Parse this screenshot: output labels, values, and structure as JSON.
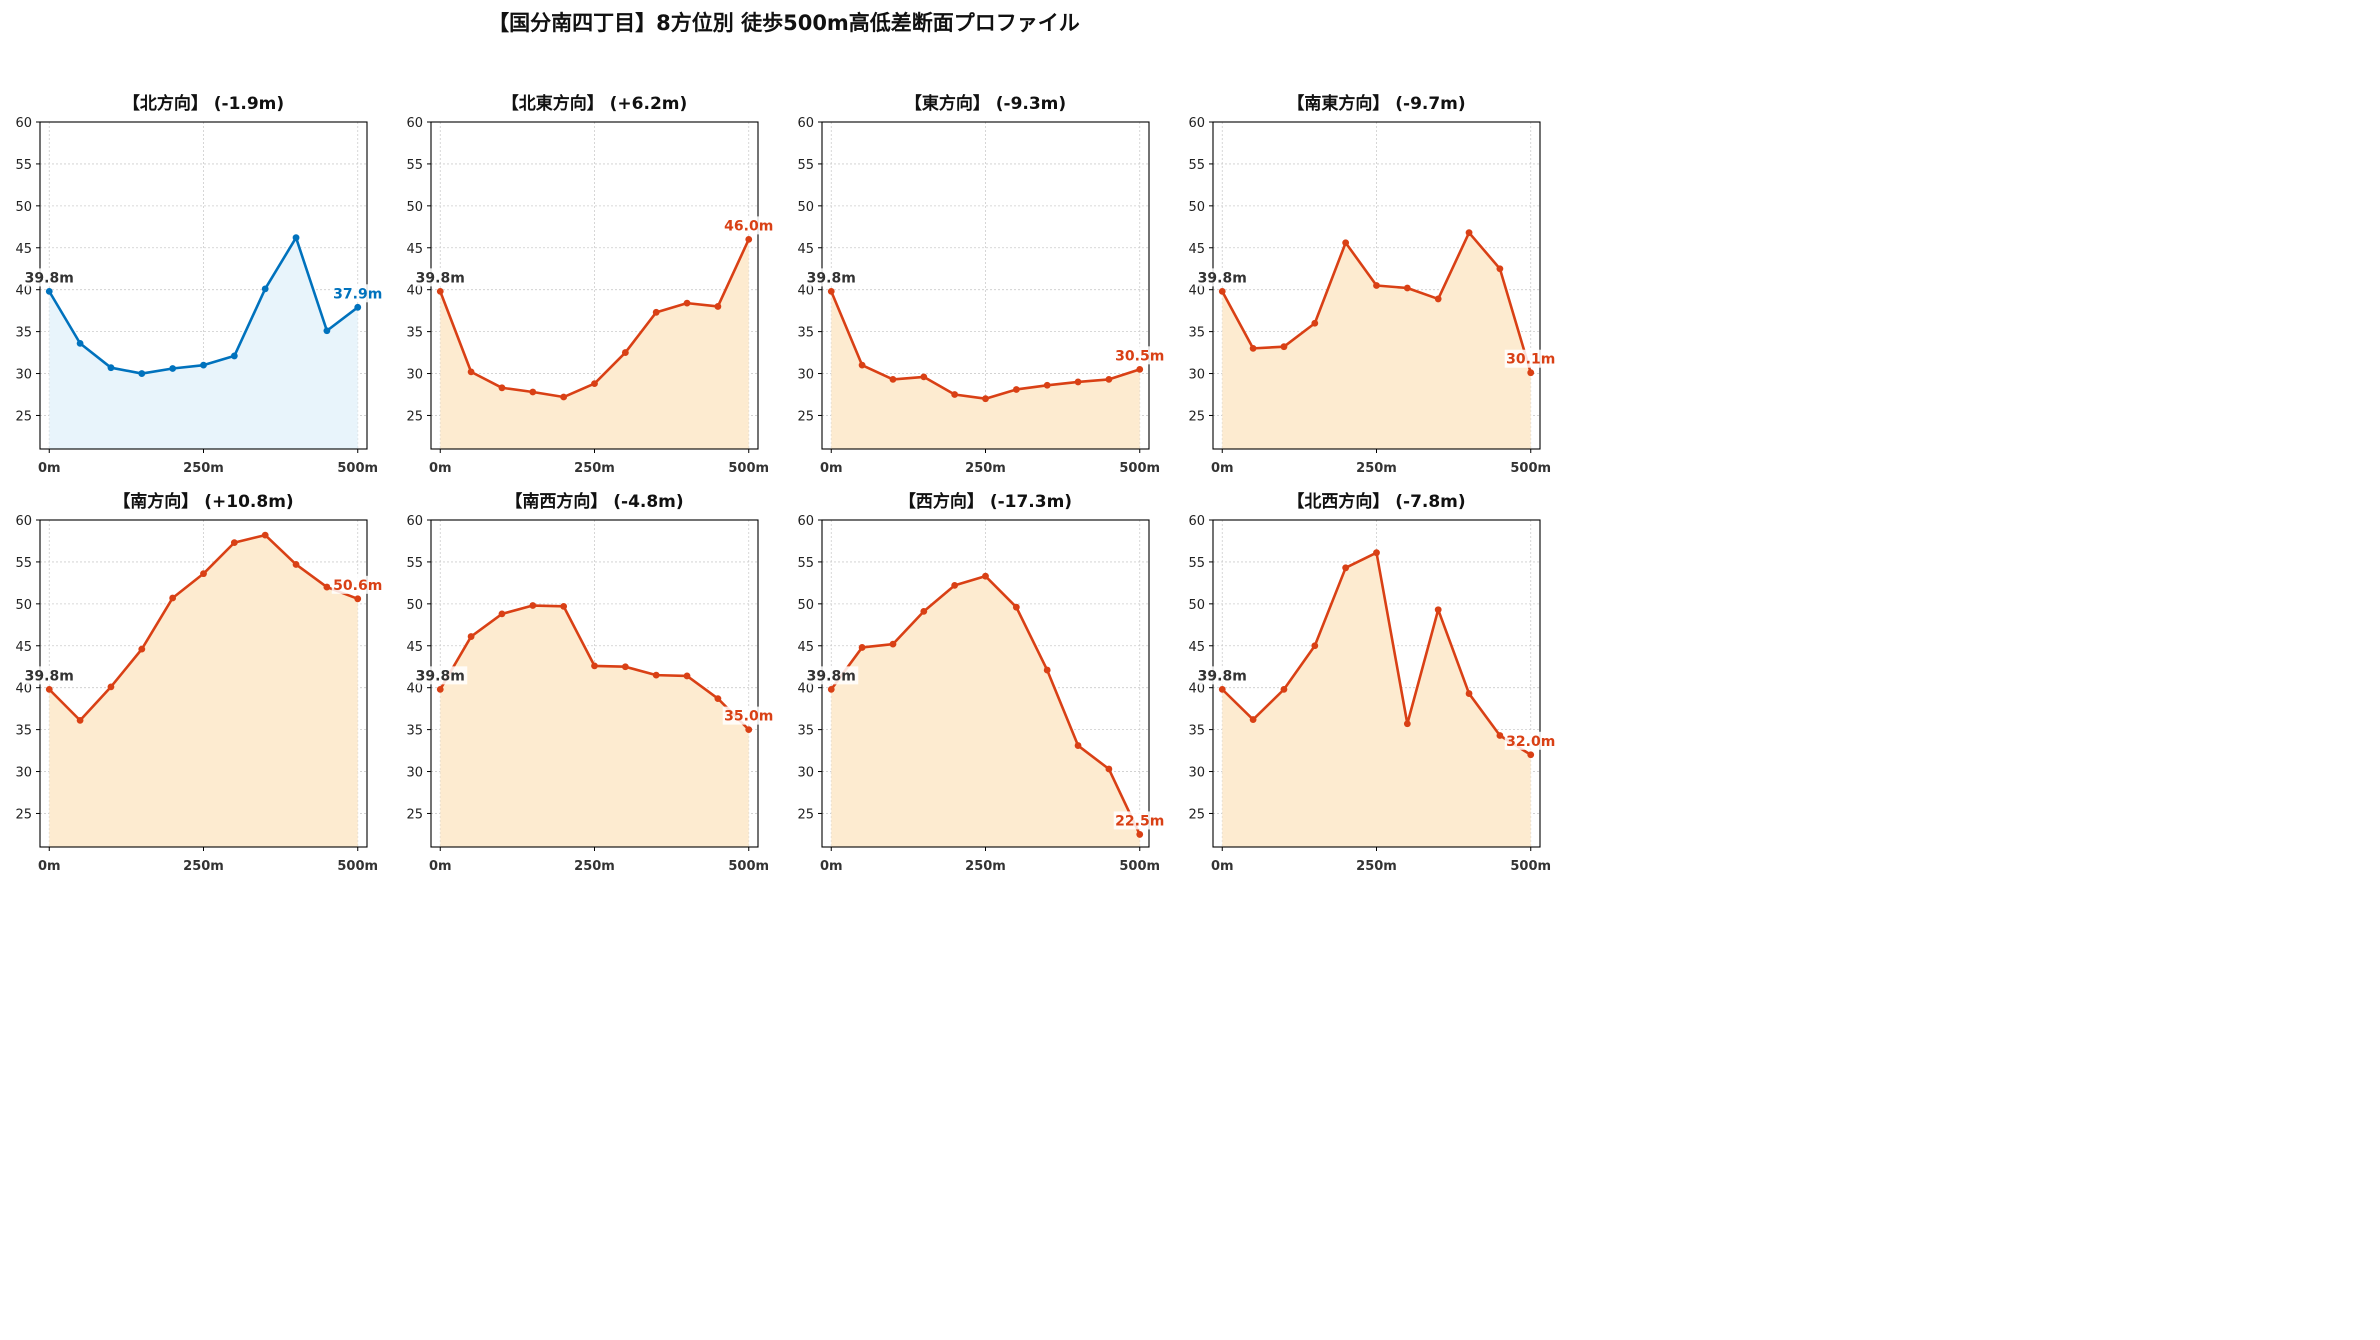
{
  "title": "【国分南四丁目】8方位別 徒歩500m高低差断面プロファイル",
  "colors": {
    "up_line": "#0072bd",
    "up_fill": "#e8f4fb",
    "down_line": "#d94015",
    "down_fill": "#fdebd0",
    "start_label": "#333333",
    "grid": "#cccccc"
  },
  "chart_data": [
    {
      "type": "area",
      "title": "【北方向】 (-1.9m)",
      "x": [
        0,
        50,
        100,
        150,
        200,
        250,
        300,
        350,
        400,
        450,
        500
      ],
      "y": [
        39.8,
        33.6,
        30.7,
        30.0,
        30.6,
        31.0,
        32.1,
        40.1,
        46.2,
        35.1,
        37.9
      ],
      "start_label": "39.8m",
      "end_label": "37.9m",
      "scheme": "up",
      "xticks": [
        "0m",
        "250m",
        "500m"
      ],
      "yticks": [
        25,
        30,
        35,
        40,
        45,
        50,
        55,
        60
      ],
      "ylim": [
        21,
        60
      ],
      "xlim": [
        -15,
        515
      ],
      "grid": true
    },
    {
      "type": "area",
      "title": "【北東方向】 (+6.2m)",
      "x": [
        0,
        50,
        100,
        150,
        200,
        250,
        300,
        350,
        400,
        450,
        500
      ],
      "y": [
        39.8,
        30.2,
        28.3,
        27.8,
        27.2,
        28.8,
        32.5,
        37.3,
        38.4,
        38.0,
        46.0
      ],
      "start_label": "39.8m",
      "end_label": "46.0m",
      "scheme": "down",
      "xticks": [
        "0m",
        "250m",
        "500m"
      ],
      "yticks": [
        25,
        30,
        35,
        40,
        45,
        50,
        55,
        60
      ],
      "ylim": [
        21,
        60
      ],
      "xlim": [
        -15,
        515
      ],
      "grid": true
    },
    {
      "type": "area",
      "title": "【東方向】 (-9.3m)",
      "x": [
        0,
        50,
        100,
        150,
        200,
        250,
        300,
        350,
        400,
        450,
        500
      ],
      "y": [
        39.8,
        31.0,
        29.3,
        29.6,
        27.5,
        27.0,
        28.1,
        28.6,
        29.0,
        29.3,
        30.5
      ],
      "start_label": "39.8m",
      "end_label": "30.5m",
      "scheme": "down",
      "xticks": [
        "0m",
        "250m",
        "500m"
      ],
      "yticks": [
        25,
        30,
        35,
        40,
        45,
        50,
        55,
        60
      ],
      "ylim": [
        21,
        60
      ],
      "xlim": [
        -15,
        515
      ],
      "grid": true
    },
    {
      "type": "area",
      "title": "【南東方向】 (-9.7m)",
      "x": [
        0,
        50,
        100,
        150,
        200,
        250,
        300,
        350,
        400,
        450,
        500
      ],
      "y": [
        39.8,
        33.0,
        33.2,
        36.0,
        45.6,
        40.5,
        40.2,
        38.9,
        46.8,
        42.5,
        30.1
      ],
      "start_label": "39.8m",
      "end_label": "30.1m",
      "scheme": "down",
      "xticks": [
        "0m",
        "250m",
        "500m"
      ],
      "yticks": [
        25,
        30,
        35,
        40,
        45,
        50,
        55,
        60
      ],
      "ylim": [
        21,
        60
      ],
      "xlim": [
        -15,
        515
      ],
      "grid": true
    },
    {
      "type": "area",
      "title": "【南方向】 (+10.8m)",
      "x": [
        0,
        50,
        100,
        150,
        200,
        250,
        300,
        350,
        400,
        450,
        500
      ],
      "y": [
        39.8,
        36.1,
        40.1,
        44.6,
        50.7,
        53.6,
        57.3,
        58.2,
        54.7,
        52.0,
        50.6
      ],
      "start_label": "39.8m",
      "end_label": "50.6m",
      "scheme": "down",
      "xticks": [
        "0m",
        "250m",
        "500m"
      ],
      "yticks": [
        25,
        30,
        35,
        40,
        45,
        50,
        55,
        60
      ],
      "ylim": [
        21,
        60
      ],
      "xlim": [
        -15,
        515
      ],
      "grid": true
    },
    {
      "type": "area",
      "title": "【南西方向】 (-4.8m)",
      "x": [
        0,
        50,
        100,
        150,
        200,
        250,
        300,
        350,
        400,
        450,
        500
      ],
      "y": [
        39.8,
        46.1,
        48.8,
        49.8,
        49.7,
        42.6,
        42.5,
        41.5,
        41.4,
        38.7,
        35.0
      ],
      "start_label": "39.8m",
      "end_label": "35.0m",
      "scheme": "down",
      "xticks": [
        "0m",
        "250m",
        "500m"
      ],
      "yticks": [
        25,
        30,
        35,
        40,
        45,
        50,
        55,
        60
      ],
      "ylim": [
        21,
        60
      ],
      "xlim": [
        -15,
        515
      ],
      "grid": true
    },
    {
      "type": "area",
      "title": "【西方向】 (-17.3m)",
      "x": [
        0,
        50,
        100,
        150,
        200,
        250,
        300,
        350,
        400,
        450,
        500
      ],
      "y": [
        39.8,
        44.8,
        45.2,
        49.1,
        52.2,
        53.3,
        49.6,
        42.1,
        33.1,
        30.3,
        22.5
      ],
      "start_label": "39.8m",
      "end_label": "22.5m",
      "scheme": "down",
      "xticks": [
        "0m",
        "250m",
        "500m"
      ],
      "yticks": [
        25,
        30,
        35,
        40,
        45,
        50,
        55,
        60
      ],
      "ylim": [
        21,
        60
      ],
      "xlim": [
        -15,
        515
      ],
      "grid": true
    },
    {
      "type": "area",
      "title": "【北西方向】 (-7.8m)",
      "x": [
        0,
        50,
        100,
        150,
        200,
        250,
        300,
        350,
        400,
        450,
        500
      ],
      "y": [
        39.8,
        36.2,
        39.8,
        45.0,
        54.3,
        56.1,
        35.7,
        49.3,
        39.3,
        34.3,
        32.0
      ],
      "start_label": "39.8m",
      "end_label": "32.0m",
      "scheme": "down",
      "xticks": [
        "0m",
        "250m",
        "500m"
      ],
      "yticks": [
        25,
        30,
        35,
        40,
        45,
        50,
        55,
        60
      ],
      "ylim": [
        21,
        60
      ],
      "xlim": [
        -15,
        515
      ],
      "grid": true
    }
  ]
}
